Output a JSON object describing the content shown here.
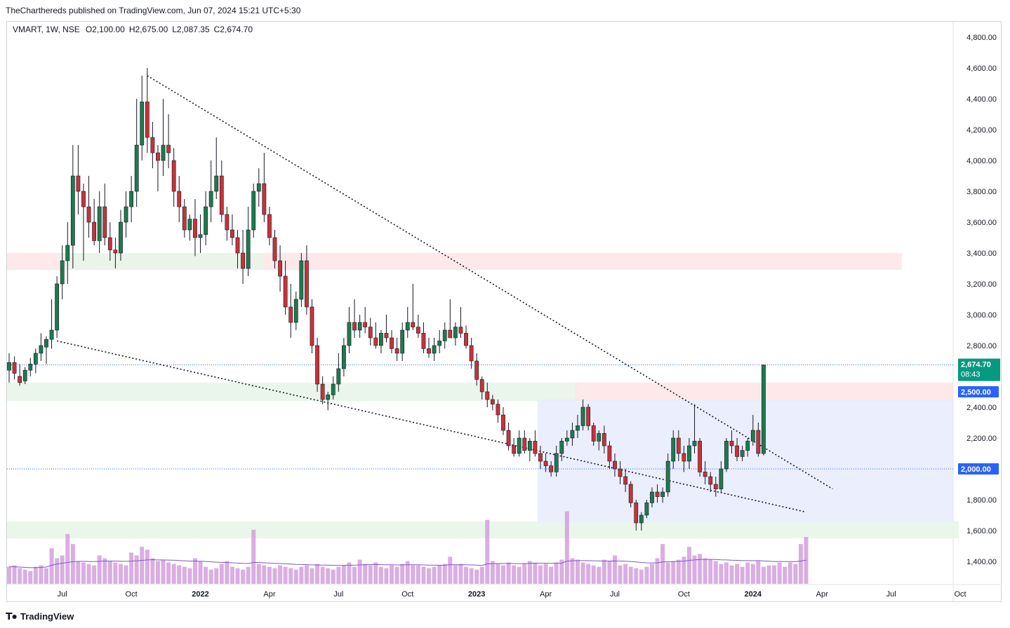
{
  "header": {
    "publisher_line": "TheCharthereds published on TradingView.com, Jun 07, 2024 15:21 UTC+5:30"
  },
  "legend": {
    "symbol": "VMART, 1W, NSE",
    "open": "O2,100.00",
    "high": "H2,675.00",
    "low": "L2,087.35",
    "close": "C2,674.70"
  },
  "footer": {
    "brand": "TradingView",
    "logo_icon": "tradingview-logo-icon"
  },
  "colors": {
    "up": "#22ab94",
    "up_body": "#1e7a4f",
    "down": "#ef5350",
    "down_body": "#c8323a",
    "volume": "#ce93d8",
    "volume_ma": "#7e57c2",
    "resistance_zone": "#fde7e7",
    "support_zone": "#e8f5e9",
    "range_box": "#e8ebfd",
    "tag_last": "#089981",
    "tag_level": "#2962ff"
  },
  "chart_data": {
    "type": "candlestick",
    "symbol": "VMART",
    "interval": "1W",
    "exchange": "NSE",
    "ylim": [
      1250,
      4900
    ],
    "y_ticks": [
      1400,
      1600,
      1800,
      2000,
      2200,
      2400,
      2600,
      2800,
      3000,
      3200,
      3400,
      3600,
      3800,
      4000,
      4200,
      4400,
      4600,
      4800
    ],
    "y_tick_labels": [
      "1,400.00",
      "1,600.00",
      "1,800.00",
      "2,000.00",
      "2,200.00",
      "2,400.00",
      "2,600.00",
      "2,800.00",
      "3,000.00",
      "3,200.00",
      "3,400.00",
      "3,600.00",
      "3,800.00",
      "4,000.00",
      "4,200.00",
      "4,400.00",
      "4,600.00",
      "4,800.00"
    ],
    "x_labels": [
      {
        "text": "Jul",
        "week": 10,
        "bold": false
      },
      {
        "text": "Oct",
        "week": 23,
        "bold": false
      },
      {
        "text": "2022",
        "week": 36,
        "bold": true
      },
      {
        "text": "Apr",
        "week": 49,
        "bold": false
      },
      {
        "text": "Jul",
        "week": 62,
        "bold": false
      },
      {
        "text": "Oct",
        "week": 75,
        "bold": false
      },
      {
        "text": "2023",
        "week": 88,
        "bold": true
      },
      {
        "text": "Apr",
        "week": 101,
        "bold": false
      },
      {
        "text": "Jul",
        "week": 114,
        "bold": false
      },
      {
        "text": "Oct",
        "week": 127,
        "bold": false
      },
      {
        "text": "2024",
        "week": 140,
        "bold": true
      },
      {
        "text": "Apr",
        "week": 153,
        "bold": false
      },
      {
        "text": "Jul",
        "week": 166,
        "bold": false
      },
      {
        "text": "Oct",
        "week": 179,
        "bold": false
      }
    ],
    "ohlc": [
      [
        2640,
        2750,
        2560,
        2690
      ],
      [
        2690,
        2730,
        2580,
        2620
      ],
      [
        2600,
        2680,
        2540,
        2560
      ],
      [
        2570,
        2660,
        2550,
        2640
      ],
      [
        2640,
        2720,
        2600,
        2680
      ],
      [
        2680,
        2780,
        2620,
        2750
      ],
      [
        2750,
        2880,
        2700,
        2800
      ],
      [
        2790,
        2860,
        2680,
        2840
      ],
      [
        2840,
        3100,
        2780,
        2900
      ],
      [
        2900,
        3250,
        2850,
        3200
      ],
      [
        3200,
        3450,
        3100,
        3350
      ],
      [
        3350,
        3600,
        3200,
        3450
      ],
      [
        3450,
        4100,
        3300,
        3900
      ],
      [
        3900,
        4100,
        3650,
        3800
      ],
      [
        3800,
        3850,
        3350,
        3700
      ],
      [
        3700,
        3900,
        3500,
        3600
      ],
      [
        3600,
        3750,
        3450,
        3480
      ],
      [
        3480,
        3800,
        3400,
        3700
      ],
      [
        3700,
        3850,
        3450,
        3500
      ],
      [
        3500,
        3600,
        3350,
        3420
      ],
      [
        3420,
        3500,
        3300,
        3400
      ],
      [
        3400,
        3680,
        3350,
        3600
      ],
      [
        3600,
        3800,
        3500,
        3700
      ],
      [
        3700,
        3900,
        3600,
        3800
      ],
      [
        3800,
        4400,
        3700,
        4100
      ],
      [
        4100,
        4550,
        4000,
        4380
      ],
      [
        4380,
        4600,
        4050,
        4150
      ],
      [
        4150,
        4250,
        3950,
        4050
      ],
      [
        4050,
        4100,
        3800,
        4000
      ],
      [
        4000,
        4400,
        3900,
        4100
      ],
      [
        4100,
        4300,
        3950,
        4050
      ],
      [
        4000,
        4080,
        3700,
        3800
      ],
      [
        3800,
        3900,
        3600,
        3700
      ],
      [
        3700,
        3750,
        3500,
        3550
      ],
      [
        3550,
        3650,
        3480,
        3620
      ],
      [
        3620,
        3750,
        3380,
        3500
      ],
      [
        3500,
        3650,
        3400,
        3520
      ],
      [
        3520,
        3800,
        3450,
        3700
      ],
      [
        3700,
        4000,
        3600,
        3800
      ],
      [
        3800,
        4150,
        3750,
        3900
      ],
      [
        3900,
        4000,
        3600,
        3650
      ],
      [
        3650,
        3700,
        3480,
        3550
      ],
      [
        3550,
        3650,
        3450,
        3500
      ],
      [
        3500,
        3550,
        3300,
        3400
      ],
      [
        3400,
        3550,
        3200,
        3300
      ],
      [
        3300,
        3700,
        3250,
        3550
      ],
      [
        3550,
        3850,
        3500,
        3800
      ],
      [
        3800,
        3950,
        3700,
        3850
      ],
      [
        3850,
        4050,
        3600,
        3650
      ],
      [
        3650,
        3700,
        3450,
        3500
      ],
      [
        3500,
        3550,
        3300,
        3350
      ],
      [
        3350,
        3450,
        3150,
        3250
      ],
      [
        3250,
        3350,
        3000,
        3050
      ],
      [
        3050,
        3200,
        2850,
        2950
      ],
      [
        2950,
        3150,
        2900,
        3100
      ],
      [
        3100,
        3400,
        3050,
        3350
      ],
      [
        3350,
        3450,
        3000,
        3050
      ],
      [
        3050,
        3100,
        2750,
        2800
      ],
      [
        2800,
        2850,
        2500,
        2550
      ],
      [
        2550,
        2600,
        2420,
        2450
      ],
      [
        2450,
        2500,
        2380,
        2480
      ],
      [
        2480,
        2600,
        2450,
        2550
      ],
      [
        2550,
        2750,
        2500,
        2650
      ],
      [
        2650,
        2850,
        2600,
        2800
      ],
      [
        2800,
        3050,
        2750,
        2950
      ],
      [
        2950,
        3100,
        2850,
        2900
      ],
      [
        2900,
        3000,
        2850,
        2950
      ],
      [
        2950,
        3050,
        2880,
        2920
      ],
      [
        2920,
        2980,
        2800,
        2850
      ],
      [
        2850,
        2950,
        2780,
        2800
      ],
      [
        2800,
        2900,
        2750,
        2880
      ],
      [
        2880,
        3000,
        2820,
        2850
      ],
      [
        2850,
        2900,
        2750,
        2780
      ],
      [
        2780,
        2850,
        2700,
        2750
      ],
      [
        2750,
        2950,
        2700,
        2900
      ],
      [
        2900,
        3050,
        2850,
        2950
      ],
      [
        2950,
        3200,
        2900,
        2920
      ],
      [
        2920,
        3000,
        2850,
        2880
      ],
      [
        2880,
        2950,
        2750,
        2780
      ],
      [
        2780,
        2850,
        2720,
        2750
      ],
      [
        2750,
        2850,
        2700,
        2800
      ],
      [
        2800,
        2900,
        2750,
        2830
      ],
      [
        2830,
        2950,
        2780,
        2900
      ],
      [
        2900,
        3100,
        2850,
        2850
      ],
      [
        2850,
        2950,
        2800,
        2920
      ],
      [
        2920,
        3050,
        2850,
        2880
      ],
      [
        2880,
        2930,
        2780,
        2800
      ],
      [
        2800,
        2850,
        2650,
        2700
      ],
      [
        2700,
        2750,
        2540,
        2580
      ],
      [
        2580,
        2600,
        2450,
        2500
      ],
      [
        2500,
        2560,
        2400,
        2450
      ],
      [
        2450,
        2480,
        2380,
        2420
      ],
      [
        2420,
        2450,
        2300,
        2350
      ],
      [
        2350,
        2400,
        2220,
        2250
      ],
      [
        2250,
        2300,
        2120,
        2150
      ],
      [
        2150,
        2200,
        2080,
        2100
      ],
      [
        2100,
        2250,
        2080,
        2200
      ],
      [
        2200,
        2250,
        2100,
        2120
      ],
      [
        2120,
        2200,
        2050,
        2180
      ],
      [
        2180,
        2250,
        2080,
        2100
      ],
      [
        2100,
        2150,
        2000,
        2050
      ],
      [
        2050,
        2100,
        1980,
        2020
      ],
      [
        2020,
        2050,
        1950,
        1980
      ],
      [
        1980,
        2150,
        1950,
        2100
      ],
      [
        2100,
        2200,
        2050,
        2180
      ],
      [
        2180,
        2250,
        2150,
        2200
      ],
      [
        2200,
        2300,
        2150,
        2250
      ],
      [
        2250,
        2350,
        2200,
        2280
      ],
      [
        2280,
        2450,
        2250,
        2400
      ],
      [
        2400,
        2420,
        2250,
        2280
      ],
      [
        2280,
        2300,
        2150,
        2180
      ],
      [
        2180,
        2250,
        2120,
        2230
      ],
      [
        2230,
        2280,
        2100,
        2150
      ],
      [
        2150,
        2180,
        2000,
        2050
      ],
      [
        2050,
        2100,
        1950,
        2000
      ],
      [
        2000,
        2050,
        1900,
        1950
      ],
      [
        1950,
        2000,
        1850,
        1900
      ],
      [
        1900,
        1920,
        1750,
        1780
      ],
      [
        1780,
        1800,
        1600,
        1650
      ],
      [
        1650,
        1720,
        1600,
        1700
      ],
      [
        1700,
        1800,
        1680,
        1780
      ],
      [
        1780,
        1880,
        1750,
        1850
      ],
      [
        1850,
        1900,
        1780,
        1820
      ],
      [
        1820,
        1880,
        1780,
        1850
      ],
      [
        1850,
        2100,
        1820,
        2050
      ],
      [
        2050,
        2250,
        2000,
        2200
      ],
      [
        2200,
        2250,
        2050,
        2100
      ],
      [
        2100,
        2150,
        1980,
        2050
      ],
      [
        2050,
        2200,
        2000,
        2150
      ],
      [
        2150,
        2420,
        2100,
        2180
      ],
      [
        2180,
        2200,
        1950,
        1980
      ],
      [
        1980,
        2050,
        1900,
        1950
      ],
      [
        1950,
        1980,
        1850,
        1900
      ],
      [
        1900,
        1950,
        1820,
        1870
      ],
      [
        1870,
        2050,
        1850,
        2000
      ],
      [
        2000,
        2200,
        1980,
        2180
      ],
      [
        2180,
        2250,
        2100,
        2150
      ],
      [
        2150,
        2200,
        2050,
        2080
      ],
      [
        2080,
        2150,
        2050,
        2120
      ],
      [
        2120,
        2200,
        2080,
        2180
      ],
      [
        2180,
        2350,
        2150,
        2250
      ],
      [
        2250,
        2300,
        2080,
        2100
      ],
      [
        2100,
        2675,
        2087.35,
        2674.7
      ]
    ],
    "volume_scale_max": 1000,
    "volume": [
      120,
      130,
      110,
      100,
      90,
      120,
      130,
      110,
      250,
      180,
      200,
      350,
      280,
      160,
      150,
      140,
      130,
      200,
      180,
      160,
      150,
      140,
      130,
      220,
      200,
      260,
      240,
      180,
      160,
      170,
      150,
      140,
      130,
      120,
      110,
      180,
      160,
      120,
      100,
      110,
      140,
      160,
      120,
      110,
      100,
      120,
      380,
      140,
      130,
      120,
      110,
      130,
      120,
      110,
      100,
      120,
      130,
      110,
      140,
      120,
      110,
      100,
      120,
      130,
      150,
      120,
      170,
      140,
      130,
      150,
      120,
      110,
      130,
      120,
      140,
      160,
      130,
      130,
      120,
      110,
      120,
      130,
      140,
      190,
      130,
      140,
      120,
      110,
      100,
      120,
      450,
      160,
      140,
      130,
      150,
      130,
      120,
      140,
      160,
      150,
      130,
      140,
      120,
      150,
      170,
      510,
      180,
      170,
      150,
      140,
      130,
      120,
      170,
      160,
      200,
      130,
      140,
      120,
      110,
      100,
      120,
      140,
      180,
      280,
      150,
      160,
      170,
      190,
      260,
      200,
      210,
      180,
      170,
      160,
      140,
      150,
      130,
      140,
      120,
      150,
      140,
      160,
      120,
      130,
      130,
      150,
      120,
      150,
      140,
      280,
      330
    ],
    "volume_ma": [
      120,
      120,
      118,
      116,
      114,
      115,
      116,
      118,
      130,
      140,
      145,
      150,
      155,
      158,
      158,
      157,
      156,
      158,
      160,
      160,
      160,
      159,
      158,
      160,
      162,
      165,
      168,
      170,
      168,
      168,
      167,
      166,
      164,
      162,
      160,
      160,
      159,
      157,
      155,
      152,
      150,
      150,
      148,
      146,
      144,
      143,
      150,
      150,
      148,
      146,
      144,
      143,
      141,
      139,
      137,
      136,
      135,
      133,
      133,
      132,
      131,
      130,
      130,
      130,
      131,
      131,
      133,
      134,
      135,
      136,
      135,
      134,
      134,
      133,
      133,
      134,
      134,
      134,
      133,
      132,
      131,
      131,
      131,
      134,
      134,
      135,
      134,
      133,
      131,
      130,
      140,
      142,
      143,
      143,
      144,
      143,
      142,
      143,
      144,
      145,
      145,
      145,
      144,
      145,
      146,
      160,
      162,
      163,
      163,
      163,
      162,
      161,
      160,
      160,
      161,
      160,
      159,
      157,
      154,
      150,
      148,
      147,
      148,
      154,
      155,
      156,
      158,
      160,
      165,
      168,
      171,
      172,
      172,
      171,
      169,
      168,
      166,
      165,
      163,
      163,
      163,
      163,
      161,
      159,
      157,
      157,
      156,
      156,
      156,
      160,
      166
    ],
    "zones": [
      {
        "name": "resistance-zone-3300-3400",
        "from_week": 0,
        "to_week": 168,
        "low": 3290,
        "high": 3400,
        "kind": "resistance"
      },
      {
        "name": "support-zone-left-3300",
        "from_week": 10,
        "to_week": 48,
        "low": 3290,
        "high": 3400,
        "kind": "support"
      },
      {
        "name": "support-zone-2500",
        "from_week": 0,
        "to_week": 107,
        "low": 2440,
        "high": 2560,
        "kind": "support"
      },
      {
        "name": "resistance-zone-2500",
        "from_week": 107,
        "to_week": 192,
        "low": 2440,
        "high": 2560,
        "kind": "resistance"
      },
      {
        "name": "range-box-1650-2450",
        "from_week": 100,
        "to_week": 192,
        "low": 1650,
        "high": 2450,
        "kind": "range"
      },
      {
        "name": "support-zone-1600",
        "from_week": 0,
        "to_week": 194,
        "low": 1550,
        "high": 1660,
        "kind": "support"
      }
    ],
    "trendlines": [
      {
        "name": "upper-trendline",
        "from": [
          26,
          4550
        ],
        "to": [
          155,
          1870
        ]
      },
      {
        "name": "lower-trendline",
        "from": [
          9,
          2830
        ],
        "to": [
          150,
          1720
        ]
      }
    ],
    "horizontal_lines": [
      {
        "name": "last-price-line",
        "value": 2674.7
      },
      {
        "name": "level-2000-line",
        "value": 2000
      }
    ],
    "price_tags": [
      {
        "name": "last-price-tag",
        "value": 2674.7,
        "label": "2,674.70",
        "sub": "08:43",
        "kind": "last"
      },
      {
        "name": "level-2500-tag",
        "value": 2500,
        "label": "2,500.00",
        "kind": "level"
      },
      {
        "name": "level-2000-tag",
        "value": 2000,
        "label": "2,000.00",
        "kind": "level"
      }
    ]
  }
}
